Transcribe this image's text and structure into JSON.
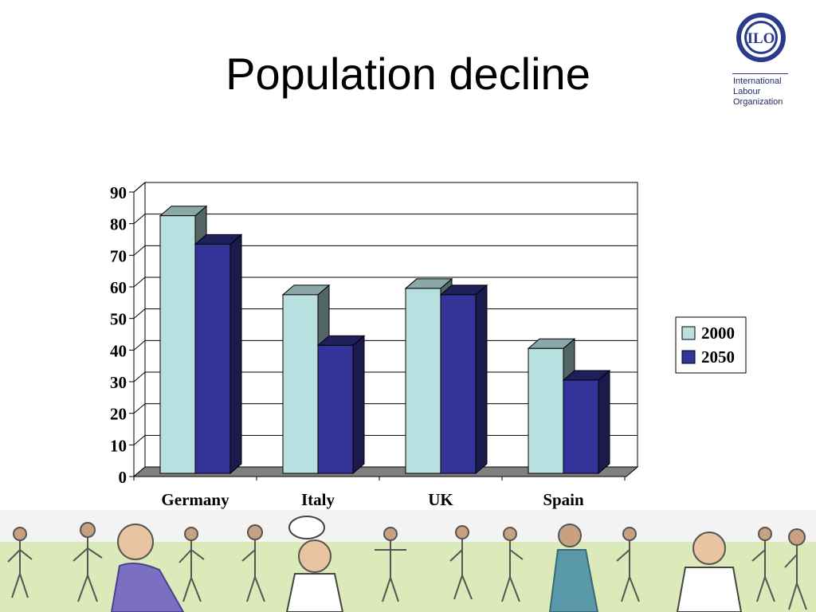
{
  "slide": {
    "title": "Population decline"
  },
  "logo": {
    "emblem_text": "ILO",
    "lines": [
      "International",
      "Labour",
      "Organization"
    ]
  },
  "colors": {
    "series_2000": "#b8e0e0",
    "series_2050": "#33339a",
    "floor": "#808080",
    "gridline": "#000000"
  },
  "chart_data": {
    "type": "bar",
    "categories": [
      "Germany",
      "Italy",
      "UK",
      "Spain"
    ],
    "series": [
      {
        "name": "2000",
        "values": [
          81,
          56,
          58,
          39
        ]
      },
      {
        "name": "2050",
        "values": [
          72,
          40,
          56,
          29
        ]
      }
    ],
    "title": "",
    "xlabel": "",
    "ylabel": "",
    "ylim": [
      0,
      90
    ],
    "yticks": [
      "0",
      "10",
      "20",
      "30",
      "40",
      "50",
      "60",
      "70",
      "80",
      "90"
    ],
    "grid": true,
    "legend": "right",
    "style": "3d-clustered-column"
  }
}
